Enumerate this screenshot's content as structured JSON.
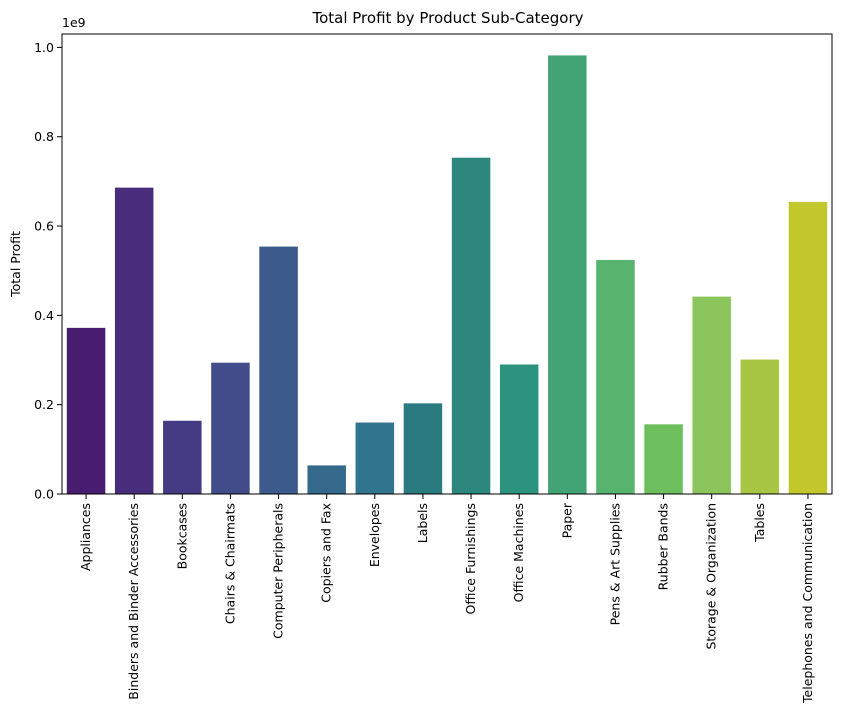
{
  "chart_data": {
    "type": "bar",
    "title": "Total Profit by Product Sub-Category",
    "xlabel": "",
    "ylabel": "Total Profit",
    "y_offset_label": "1e9",
    "y_scale": 1000000000,
    "ylim": [
      0,
      1.03
    ],
    "yticks": [
      0.0,
      0.2,
      0.4,
      0.6,
      0.8,
      1.0
    ],
    "ytick_labels": [
      "0.0",
      "0.2",
      "0.4",
      "0.6",
      "0.8",
      "1.0"
    ],
    "grid": false,
    "legend": "none",
    "categories": [
      "Appliances",
      "Binders and Binder Accessories",
      "Bookcases",
      "Chairs & Chairmats",
      "Computer Peripherals",
      "Copiers and Fax",
      "Envelopes",
      "Labels",
      "Office Furnishings",
      "Office Machines",
      "Paper",
      "Pens & Art Supplies",
      "Rubber Bands",
      "Storage & Organization",
      "Tables",
      "Telephones and Communication"
    ],
    "values": [
      372000000,
      686000000,
      164000000,
      294000000,
      554000000,
      64000000,
      160000000,
      203000000,
      753000000,
      290000000,
      982000000,
      524000000,
      156000000,
      442000000,
      301000000,
      654000000
    ],
    "colors": [
      "#481c6e",
      "#472d7b",
      "#453a84",
      "#424c8a",
      "#3c5a8b",
      "#35698c",
      "#31748e",
      "#2b7a80",
      "#2d877d",
      "#2c947e",
      "#42a374",
      "#58b36f",
      "#6dbf5e",
      "#8bc55b",
      "#a8c543",
      "#c2c82c"
    ]
  }
}
